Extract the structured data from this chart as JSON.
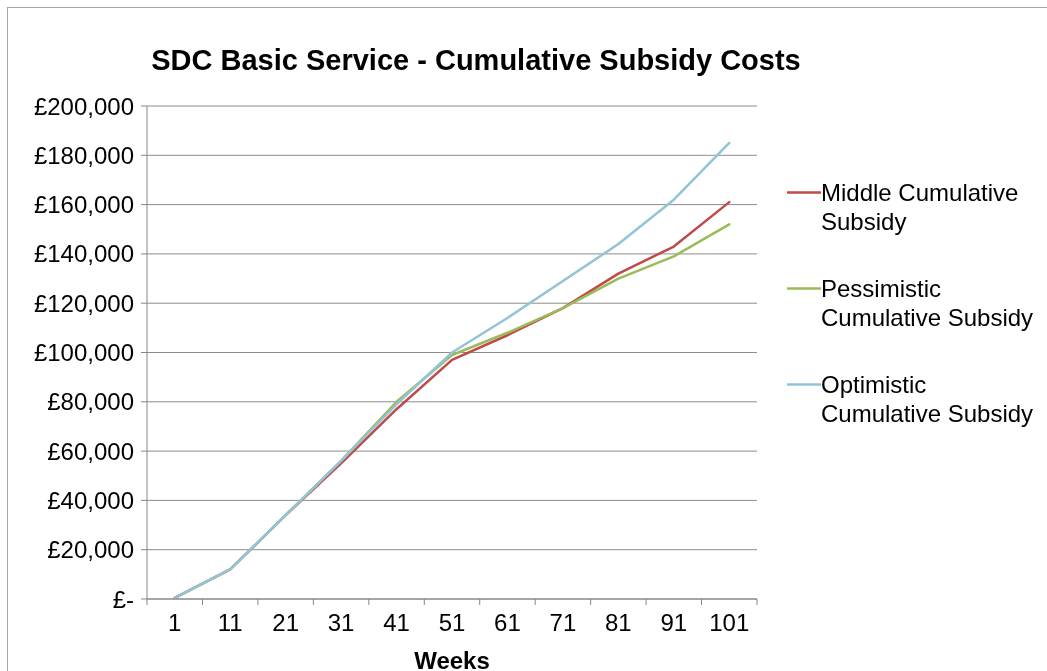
{
  "chart_data": {
    "type": "line",
    "title": "SDC Basic Service - Cumulative Subsidy Costs",
    "xlabel": "Weeks",
    "categories": [
      "1",
      "11",
      "21",
      "31",
      "41",
      "51",
      "61",
      "71",
      "81",
      "91",
      "101"
    ],
    "series": [
      {
        "name": "Middle Cumulative Subsidy",
        "color": "#be4b48",
        "values": [
          500,
          12000,
          34000,
          55000,
          77000,
          97000,
          107000,
          118000,
          132000,
          143000,
          161000
        ]
      },
      {
        "name": "Pessimistic Cumulative Subsidy",
        "color": "#9bbb59",
        "values": [
          500,
          12000,
          34000,
          56000,
          80000,
          99000,
          108000,
          118000,
          130000,
          139000,
          152000
        ]
      },
      {
        "name": "Optimistic Cumulative Subsidy",
        "color": "#93c3d8",
        "values": [
          500,
          12000,
          34000,
          56000,
          79000,
          100000,
          114000,
          129000,
          144000,
          162000,
          185000
        ]
      }
    ],
    "ylim": [
      0,
      200000
    ],
    "yticks": [
      {
        "value": 0,
        "label": "£-"
      },
      {
        "value": 20000,
        "label": "£20,000"
      },
      {
        "value": 40000,
        "label": "£40,000"
      },
      {
        "value": 60000,
        "label": "£60,000"
      },
      {
        "value": 80000,
        "label": "£80,000"
      },
      {
        "value": 100000,
        "label": "£100,000"
      },
      {
        "value": 120000,
        "label": "£120,000"
      },
      {
        "value": 140000,
        "label": "£140,000"
      },
      {
        "value": 160000,
        "label": "£160,000"
      },
      {
        "value": 180000,
        "label": "£180,000"
      },
      {
        "value": 200000,
        "label": "£200,000"
      }
    ],
    "grid": "y",
    "legend": "right",
    "marker": "none",
    "line_style": "solid"
  }
}
